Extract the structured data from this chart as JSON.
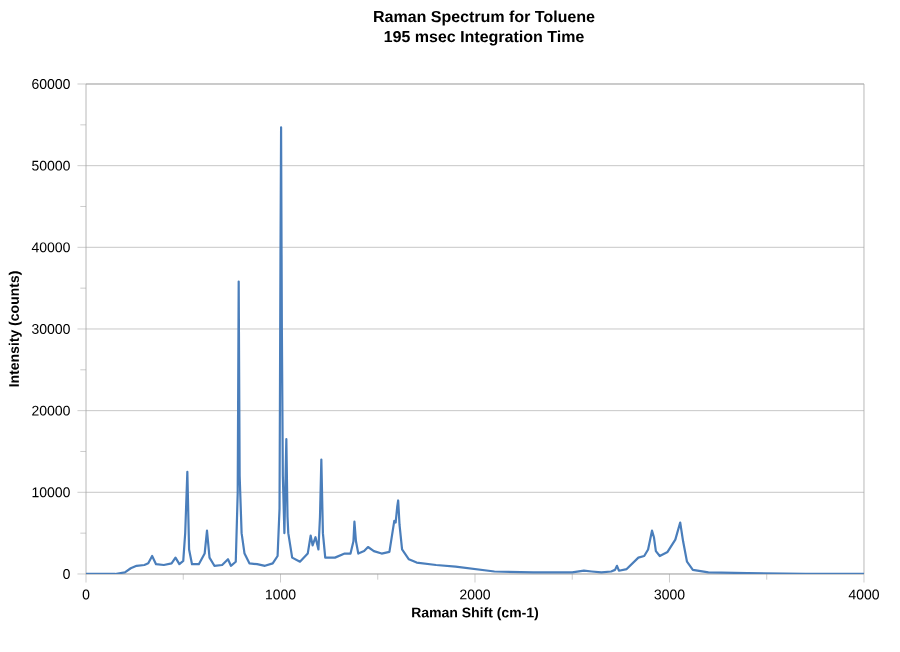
{
  "chart_data": {
    "type": "line",
    "title": "Raman Spectrum for Toluene",
    "subtitle": "195 msec Integration Time",
    "xlabel": "Raman Shift (cm-1)",
    "ylabel": "Intensity (counts)",
    "xlim": [
      0,
      4000
    ],
    "ylim": [
      0,
      60000
    ],
    "xticks": [
      0,
      1000,
      2000,
      3000,
      4000
    ],
    "yticks": [
      0,
      10000,
      20000,
      30000,
      40000,
      50000,
      60000
    ],
    "grid": "y",
    "marker": "none",
    "line_style": "solid",
    "series": [
      {
        "color": "#4a7ebb",
        "x": [
          0,
          150,
          200,
          230,
          260,
          300,
          320,
          340,
          360,
          400,
          440,
          460,
          480,
          500,
          510,
          521,
          530,
          545,
          580,
          610,
          622,
          635,
          660,
          700,
          730,
          745,
          770,
          780,
          785,
          790,
          800,
          815,
          840,
          880,
          920,
          960,
          985,
          995,
          1000,
          1003,
          1007,
          1012,
          1020,
          1030,
          1036,
          1040,
          1060,
          1100,
          1140,
          1155,
          1165,
          1180,
          1195,
          1203,
          1210,
          1218,
          1230,
          1280,
          1330,
          1360,
          1375,
          1380,
          1388,
          1400,
          1430,
          1450,
          1480,
          1520,
          1560,
          1585,
          1592,
          1600,
          1605,
          1612,
          1625,
          1660,
          1700,
          1800,
          1900,
          2000,
          2100,
          2300,
          2500,
          2560,
          2600,
          2650,
          2700,
          2720,
          2730,
          2740,
          2780,
          2840,
          2870,
          2890,
          2910,
          2920,
          2930,
          2950,
          2990,
          3030,
          3055,
          3070,
          3090,
          3120,
          3200,
          3400,
          3700,
          4000
        ],
        "values": [
          0,
          0,
          200,
          700,
          1000,
          1100,
          1300,
          2200,
          1200,
          1100,
          1300,
          2000,
          1200,
          1600,
          5000,
          12500,
          3000,
          1200,
          1200,
          2500,
          5300,
          2000,
          1000,
          1100,
          1800,
          1000,
          1500,
          10000,
          35800,
          12000,
          5000,
          2500,
          1300,
          1200,
          1000,
          1300,
          2200,
          8000,
          40000,
          54700,
          30000,
          12000,
          5000,
          16500,
          7000,
          5000,
          2000,
          1500,
          2500,
          4700,
          3500,
          4500,
          3000,
          7000,
          14000,
          5000,
          2000,
          2000,
          2500,
          2500,
          4000,
          6400,
          4000,
          2500,
          2800,
          3300,
          2800,
          2500,
          2700,
          6500,
          6300,
          8200,
          9000,
          6000,
          3000,
          1800,
          1400,
          1100,
          900,
          600,
          300,
          200,
          200,
          400,
          300,
          200,
          300,
          500,
          1000,
          400,
          600,
          2000,
          2200,
          3000,
          5300,
          4500,
          2800,
          2200,
          2700,
          4200,
          6300,
          4000,
          1500,
          500,
          200,
          100,
          0,
          0
        ]
      }
    ]
  }
}
